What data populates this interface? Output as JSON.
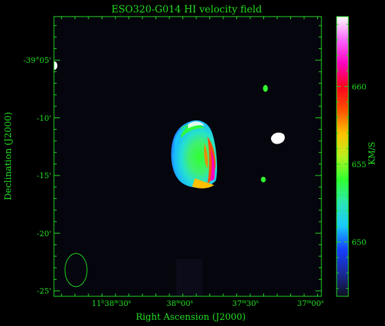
{
  "chart_data": {
    "type": "heatmap",
    "title": "ESO320-G014  HI velocity field",
    "xlabel": "Right Ascension (J2000)",
    "ylabel": "Declination (J2000)",
    "x_ticks": [
      {
        "h": "11",
        "m": "38",
        "s": "30"
      },
      {
        "m": "38",
        "s": "00"
      },
      {
        "m": "37",
        "s": "30"
      },
      {
        "m": "37",
        "s": "00"
      }
    ],
    "y_ticks": [
      "-39°05'",
      "-10'",
      "-15'",
      "-20'",
      "-25'"
    ],
    "colorbar": {
      "label": "KM/S",
      "ticks": [
        650,
        655,
        660
      ],
      "range": [
        646.5,
        664.5
      ],
      "colors": [
        "#101020",
        "#1a2a9a",
        "#1540ff",
        "#19c8ff",
        "#2be6b4",
        "#30ff30",
        "#b8f020",
        "#ffc000",
        "#ff5000",
        "#ff0020",
        "#ff00c0",
        "#ff66ff",
        "#ffffff"
      ]
    },
    "beam": "ellipse lower-left",
    "grid": false
  }
}
